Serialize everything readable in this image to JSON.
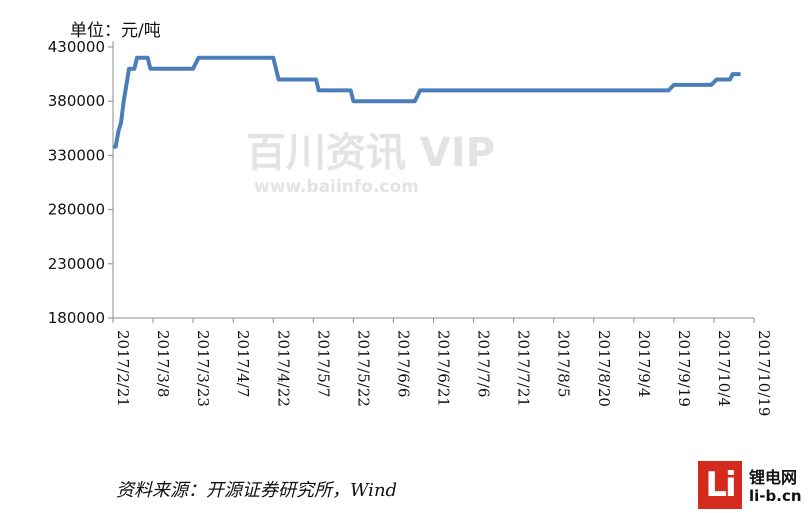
{
  "chart_data": {
    "type": "line",
    "unit_label": "单位：元/吨",
    "y_ticks": [
      "430000",
      "380000",
      "330000",
      "280000",
      "230000",
      "180000"
    ],
    "ylim": [
      180000,
      430000
    ],
    "x_ticks": [
      "2017/2/21",
      "2017/3/8",
      "2017/3/23",
      "2017/4/7",
      "2017/4/22",
      "2017/5/7",
      "2017/5/22",
      "2017/6/6",
      "2017/6/21",
      "2017/7/6",
      "2017/7/21",
      "2017/8/5",
      "2017/8/20",
      "2017/9/4",
      "2017/9/19",
      "2017/10/4",
      "2017/10/19"
    ],
    "grid": false,
    "series": [
      {
        "color": "#4a7ebb",
        "points": [
          [
            "2017/2/21",
            338000
          ],
          [
            "2017/2/22",
            338000
          ],
          [
            "2017/2/23",
            352000
          ],
          [
            "2017/2/24",
            360000
          ],
          [
            "2017/2/25",
            380000
          ],
          [
            "2017/2/26",
            395000
          ],
          [
            "2017/2/27",
            410000
          ],
          [
            "2017/3/1",
            410000
          ],
          [
            "2017/3/2",
            420000
          ],
          [
            "2017/3/6",
            420000
          ],
          [
            "2017/3/7",
            410000
          ],
          [
            "2017/3/23",
            410000
          ],
          [
            "2017/3/25",
            420000
          ],
          [
            "2017/4/22",
            420000
          ],
          [
            "2017/4/24",
            400000
          ],
          [
            "2017/5/8",
            400000
          ],
          [
            "2017/5/9",
            390000
          ],
          [
            "2017/5/21",
            390000
          ],
          [
            "2017/5/22",
            380000
          ],
          [
            "2017/6/14",
            380000
          ],
          [
            "2017/6/16",
            390000
          ],
          [
            "2017/9/17",
            390000
          ],
          [
            "2017/9/19",
            395000
          ],
          [
            "2017/10/3",
            395000
          ],
          [
            "2017/10/5",
            400000
          ],
          [
            "2017/10/10",
            400000
          ],
          [
            "2017/10/11",
            405000
          ],
          [
            "2017/10/14",
            405000
          ]
        ]
      }
    ]
  },
  "watermark": {
    "main": "百川资讯 VIP",
    "sub": "www.baiinfo.com"
  },
  "source": "资料来源：开源证券研究所，Wind",
  "logo": {
    "mark": "Li",
    "name": "锂电网",
    "url": "li-b.cn"
  }
}
